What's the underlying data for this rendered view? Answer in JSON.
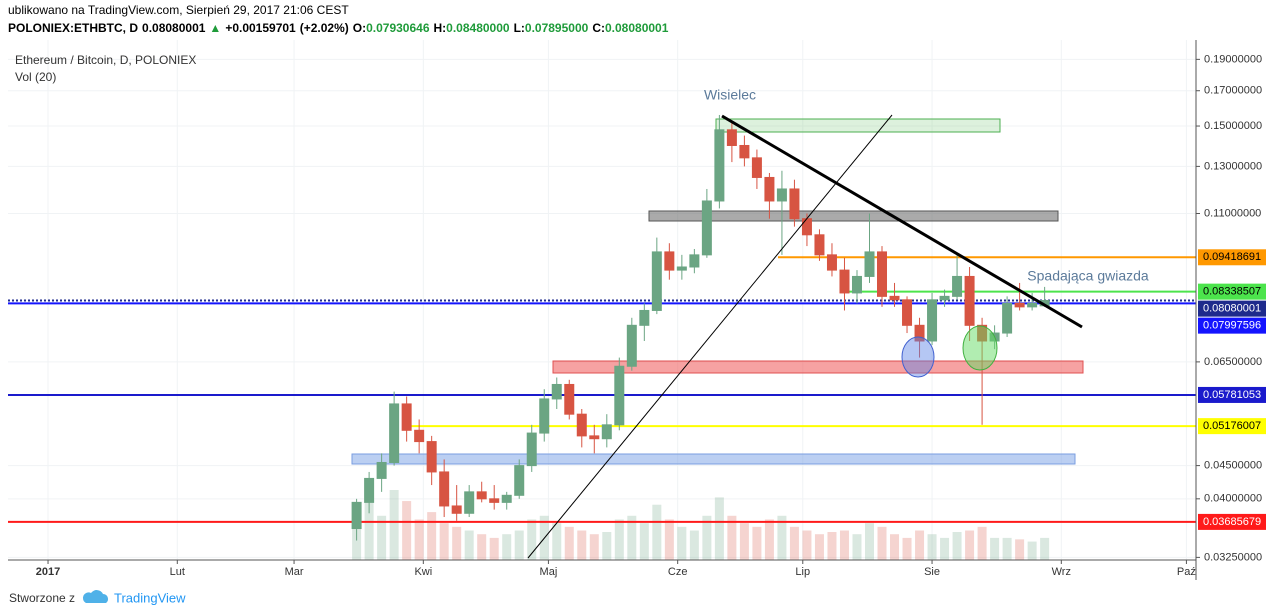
{
  "header": {
    "published": "ublikowano na TradingView.com, Sierpień 29, 2017 21:06 CEST",
    "symbol": "POLONIEX:ETHBTC, D",
    "last": "0.08080001",
    "arrow": "▲",
    "change": "+0.00159701",
    "change_pct": "(+2.02%)",
    "open_label": "O:",
    "open": "0.07930646",
    "high_label": "H:",
    "high": "0.08480000",
    "low_label": "L:",
    "low": "0.07895000",
    "close_label": "C:",
    "close": "0.08080001"
  },
  "footer": {
    "made_with": "Stworzone z",
    "brand": "TradingView"
  },
  "chart_data": {
    "type": "candlestick",
    "title": "Ethereum / Bitcoin, D, POLONIEX",
    "subtitle": "Vol (20)",
    "log_scale": true,
    "grid": true,
    "up_color": "#6ba583",
    "down_color": "#d75442",
    "xlim": [
      -9.6,
      275.3
    ],
    "xticks": [
      {
        "value": 0,
        "label": "2017"
      },
      {
        "value": 31,
        "label": "Lut"
      },
      {
        "value": 59,
        "label": "Mar"
      },
      {
        "value": 90,
        "label": "Kwi"
      },
      {
        "value": 120,
        "label": "Maj"
      },
      {
        "value": 151,
        "label": "Cze"
      },
      {
        "value": 181,
        "label": "Lip"
      },
      {
        "value": 212,
        "label": "Sie"
      },
      {
        "value": 243,
        "label": "Wrz"
      },
      {
        "value": 273,
        "label": "Paź"
      }
    ],
    "ylim": [
      0.0322,
      0.2035
    ],
    "yticks": [
      {
        "value": 0.19,
        "label": "0.19000000"
      },
      {
        "value": 0.17,
        "label": "0.17000000"
      },
      {
        "value": 0.15,
        "label": "0.15000000"
      },
      {
        "value": 0.13,
        "label": "0.13000000"
      },
      {
        "value": 0.11,
        "label": "0.11000000"
      },
      {
        "value": 0.065,
        "label": "0.06500000"
      },
      {
        "value": 0.045,
        "label": "0.04500000"
      },
      {
        "value": 0.04,
        "label": "0.04000000"
      },
      {
        "value": 0.0325,
        "label": "0.03250000"
      }
    ],
    "x": [
      74,
      77,
      80,
      83,
      86,
      89,
      92,
      95,
      98,
      101,
      104,
      107,
      110,
      113,
      116,
      119,
      122,
      125,
      128,
      131,
      134,
      137,
      140,
      143,
      146,
      149,
      152,
      155,
      158,
      161,
      164,
      167,
      170,
      173,
      176,
      179,
      182,
      185,
      188,
      191,
      194,
      197,
      200,
      203,
      206,
      209,
      212,
      215,
      218,
      221,
      224,
      227,
      230,
      233,
      236,
      239
    ],
    "open": [
      0.036,
      0.0395,
      0.043,
      0.0455,
      0.056,
      0.051,
      0.049,
      0.044,
      0.039,
      0.038,
      0.041,
      0.04,
      0.0395,
      0.0405,
      0.045,
      0.0505,
      0.057,
      0.06,
      0.054,
      0.05,
      0.0495,
      0.052,
      0.064,
      0.074,
      0.078,
      0.096,
      0.09,
      0.091,
      0.095,
      0.115,
      0.148,
      0.14,
      0.134,
      0.125,
      0.115,
      0.12,
      0.108,
      0.102,
      0.095,
      0.09,
      0.083,
      0.088,
      0.096,
      0.082,
      0.081,
      0.074,
      0.07,
      0.081,
      0.082,
      0.088,
      0.074,
      0.07,
      0.072,
      0.08,
      0.079,
      0.0793
    ],
    "high": [
      0.04,
      0.044,
      0.047,
      0.0585,
      0.0575,
      0.053,
      0.05,
      0.046,
      0.042,
      0.042,
      0.0425,
      0.042,
      0.041,
      0.046,
      0.052,
      0.059,
      0.0615,
      0.061,
      0.055,
      0.052,
      0.054,
      0.066,
      0.076,
      0.08,
      0.101,
      0.099,
      0.095,
      0.097,
      0.12,
      0.156,
      0.153,
      0.145,
      0.138,
      0.127,
      0.128,
      0.124,
      0.11,
      0.104,
      0.099,
      0.094,
      0.09,
      0.11,
      0.098,
      0.086,
      0.082,
      0.076,
      0.083,
      0.084,
      0.095,
      0.091,
      0.076,
      0.074,
      0.082,
      0.086,
      0.083,
      0.0848
    ],
    "low": [
      0.0345,
      0.038,
      0.041,
      0.045,
      0.049,
      0.047,
      0.042,
      0.0375,
      0.037,
      0.0375,
      0.0395,
      0.0385,
      0.0385,
      0.04,
      0.044,
      0.049,
      0.055,
      0.053,
      0.048,
      0.047,
      0.048,
      0.051,
      0.063,
      0.07,
      0.077,
      0.087,
      0.087,
      0.089,
      0.094,
      0.112,
      0.132,
      0.13,
      0.12,
      0.108,
      0.095,
      0.105,
      0.098,
      0.093,
      0.088,
      0.078,
      0.08,
      0.086,
      0.079,
      0.079,
      0.072,
      0.066,
      0.069,
      0.079,
      0.081,
      0.07,
      0.052,
      0.068,
      0.071,
      0.078,
      0.078,
      0.079
    ],
    "close": [
      0.0395,
      0.043,
      0.0455,
      0.056,
      0.051,
      0.049,
      0.044,
      0.039,
      0.038,
      0.041,
      0.04,
      0.0395,
      0.0405,
      0.045,
      0.0505,
      0.057,
      0.06,
      0.054,
      0.05,
      0.0495,
      0.052,
      0.064,
      0.074,
      0.078,
      0.096,
      0.09,
      0.091,
      0.095,
      0.115,
      0.148,
      0.14,
      0.134,
      0.125,
      0.115,
      0.12,
      0.108,
      0.102,
      0.095,
      0.09,
      0.083,
      0.088,
      0.096,
      0.082,
      0.081,
      0.074,
      0.07,
      0.081,
      0.082,
      0.088,
      0.074,
      0.07,
      0.072,
      0.08,
      0.079,
      0.08,
      0.0808
    ],
    "volume": [
      70,
      85,
      60,
      95,
      80,
      55,
      65,
      50,
      45,
      40,
      35,
      30,
      35,
      40,
      55,
      60,
      50,
      45,
      40,
      35,
      38,
      55,
      60,
      50,
      75,
      55,
      45,
      40,
      60,
      85,
      60,
      50,
      45,
      55,
      60,
      45,
      40,
      35,
      38,
      40,
      35,
      50,
      45,
      35,
      30,
      40,
      35,
      30,
      38,
      40,
      45,
      30,
      30,
      28,
      25,
      30
    ],
    "levels": [
      {
        "value": 0.09418691,
        "color": "#ff9800",
        "text_color": "#000000"
      },
      {
        "value": 0.08338507,
        "color": "#4ce44c",
        "text_color": "#000000"
      },
      {
        "value": 0.08080001,
        "color": "#1e2a8c",
        "text_color": "#ffffff"
      },
      {
        "value": 0.07997596,
        "color": "#1414ff",
        "text_color": "#ffffff"
      },
      {
        "value": 0.05781053,
        "color": "#1a1acc",
        "text_color": "#ffffff"
      },
      {
        "value": 0.05176007,
        "color": "#ffff00",
        "text_color": "#000000"
      },
      {
        "value": 0.03685679,
        "color": "#ff1a1a",
        "text_color": "#ffffff"
      }
    ],
    "annotations": [
      "Wisielec",
      "Spadająca gwiazda"
    ]
  }
}
